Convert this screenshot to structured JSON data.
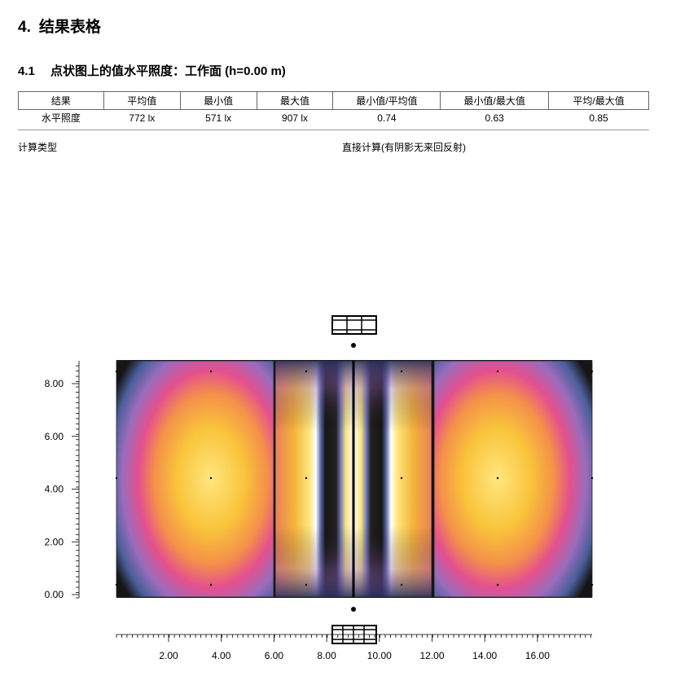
{
  "header": {
    "number": "4.",
    "title": "结果表格"
  },
  "section": {
    "number": "4.1",
    "title": "点状图上的值水平照度：工作面 (h=0.00 m)"
  },
  "table": {
    "columns": [
      "结果",
      "平均值",
      "最小值",
      "最大值",
      "最小值/平均值",
      "最小值/最大值",
      "平均/最大值"
    ],
    "rows": [
      [
        "水平照度",
        "772 lx",
        "571 lx",
        "907 lx",
        "0.74",
        "0.63",
        "0.85"
      ]
    ]
  },
  "calculation": {
    "label": "计算类型",
    "value": "直接计算(有阴影无来回反射)"
  },
  "plot": {
    "y_tick_labels": [
      "0.00",
      "2.00",
      "4.00",
      "6.00",
      "8.00"
    ],
    "x_tick_labels": [
      "2.00",
      "4.00",
      "6.00",
      "8.00",
      "10.00",
      "12.00",
      "14.00",
      "16.00"
    ]
  }
}
